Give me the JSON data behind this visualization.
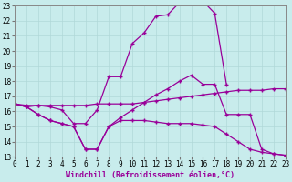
{
  "xlabel": "Windchill (Refroidissement éolien,°C)",
  "background_color": "#c8ecec",
  "line_color": "#990099",
  "xmin": 0,
  "xmax": 23,
  "ymin": 13,
  "ymax": 23,
  "curve1_x": [
    0,
    1,
    2,
    3,
    4,
    5,
    6,
    7,
    8,
    9,
    10,
    11,
    12,
    13,
    14,
    15,
    16,
    17,
    18
  ],
  "curve1_y": [
    16.5,
    16.3,
    16.4,
    16.3,
    16.1,
    15.2,
    15.2,
    16.1,
    18.3,
    18.3,
    20.5,
    21.2,
    22.3,
    22.4,
    23.2,
    23.4,
    23.3,
    22.5,
    17.8
  ],
  "curve2_x": [
    0,
    1,
    2,
    3,
    4,
    5,
    6,
    7,
    8,
    9,
    10,
    11,
    12,
    13,
    14,
    15,
    16,
    17,
    18,
    19,
    20,
    21,
    22,
    23
  ],
  "curve2_y": [
    16.5,
    16.4,
    16.4,
    16.4,
    16.4,
    16.4,
    16.4,
    16.5,
    16.5,
    16.5,
    16.5,
    16.6,
    16.7,
    16.8,
    16.9,
    17.0,
    17.1,
    17.2,
    17.3,
    17.4,
    17.4,
    17.4,
    17.5,
    17.5
  ],
  "curve3_x": [
    0,
    1,
    2,
    3,
    4,
    5,
    6,
    7,
    8,
    9,
    10,
    11,
    12,
    13,
    14,
    15,
    16,
    17,
    18,
    19,
    20,
    21,
    22,
    23
  ],
  "curve3_y": [
    16.5,
    16.3,
    15.8,
    15.4,
    15.2,
    15.0,
    13.5,
    13.5,
    15.0,
    15.6,
    16.1,
    16.6,
    17.1,
    17.5,
    18.0,
    18.4,
    17.8,
    17.8,
    15.8,
    15.8,
    15.8,
    13.5,
    13.2,
    13.1
  ],
  "curve4_x": [
    0,
    1,
    2,
    3,
    4,
    5,
    6,
    7,
    8,
    9,
    10,
    11,
    12,
    13,
    14,
    15,
    16,
    17,
    18,
    19,
    20,
    21,
    22,
    23
  ],
  "curve4_y": [
    16.5,
    16.3,
    15.8,
    15.4,
    15.2,
    15.0,
    13.5,
    13.5,
    15.0,
    15.4,
    15.4,
    15.4,
    15.3,
    15.2,
    15.2,
    15.2,
    15.1,
    15.0,
    14.5,
    14.0,
    13.5,
    13.3,
    13.2,
    13.1
  ]
}
